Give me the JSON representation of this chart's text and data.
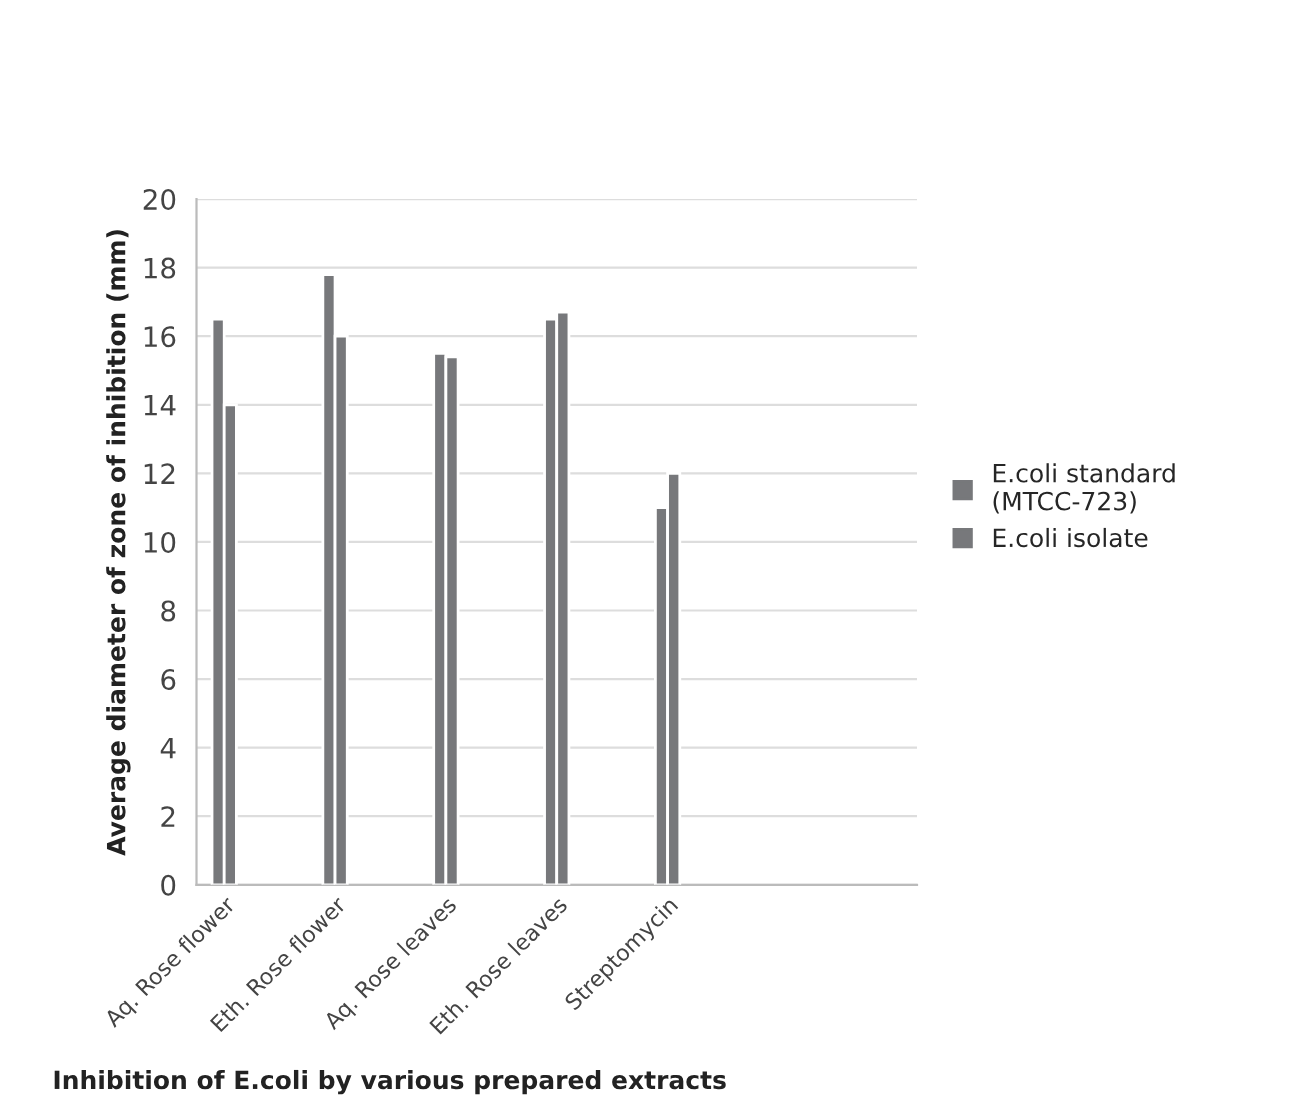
{
  "chart_data": {
    "type": "bar",
    "xlabel": "Inhibition of E.coli by various prepared extracts",
    "ylabel": "Average diameter of zone of inhibition (mm)",
    "categories": [
      "Aq. Rose flower",
      null,
      "Eth. Rose flower",
      null,
      "Aq. Rose leaves",
      null,
      "Eth. Rose leaves",
      null,
      "Streptomycin",
      null,
      null,
      null,
      null
    ],
    "series": [
      {
        "name": "E.coli standard (MTCC-723)",
        "color": "#77787b",
        "values": [
          16.5,
          null,
          17.8,
          null,
          15.5,
          null,
          16.5,
          null,
          11,
          null,
          null,
          null,
          null
        ]
      },
      {
        "name": "E.coli isolate",
        "color": "#77787b",
        "values": [
          14,
          null,
          16,
          null,
          15.4,
          null,
          16.7,
          null,
          12,
          null,
          null,
          null,
          null
        ]
      }
    ],
    "ylim": [
      0,
      20
    ],
    "yticks": [
      0,
      2,
      4,
      6,
      8,
      10,
      12,
      14,
      16,
      18,
      20
    ],
    "grid": "y",
    "legend": "right"
  }
}
